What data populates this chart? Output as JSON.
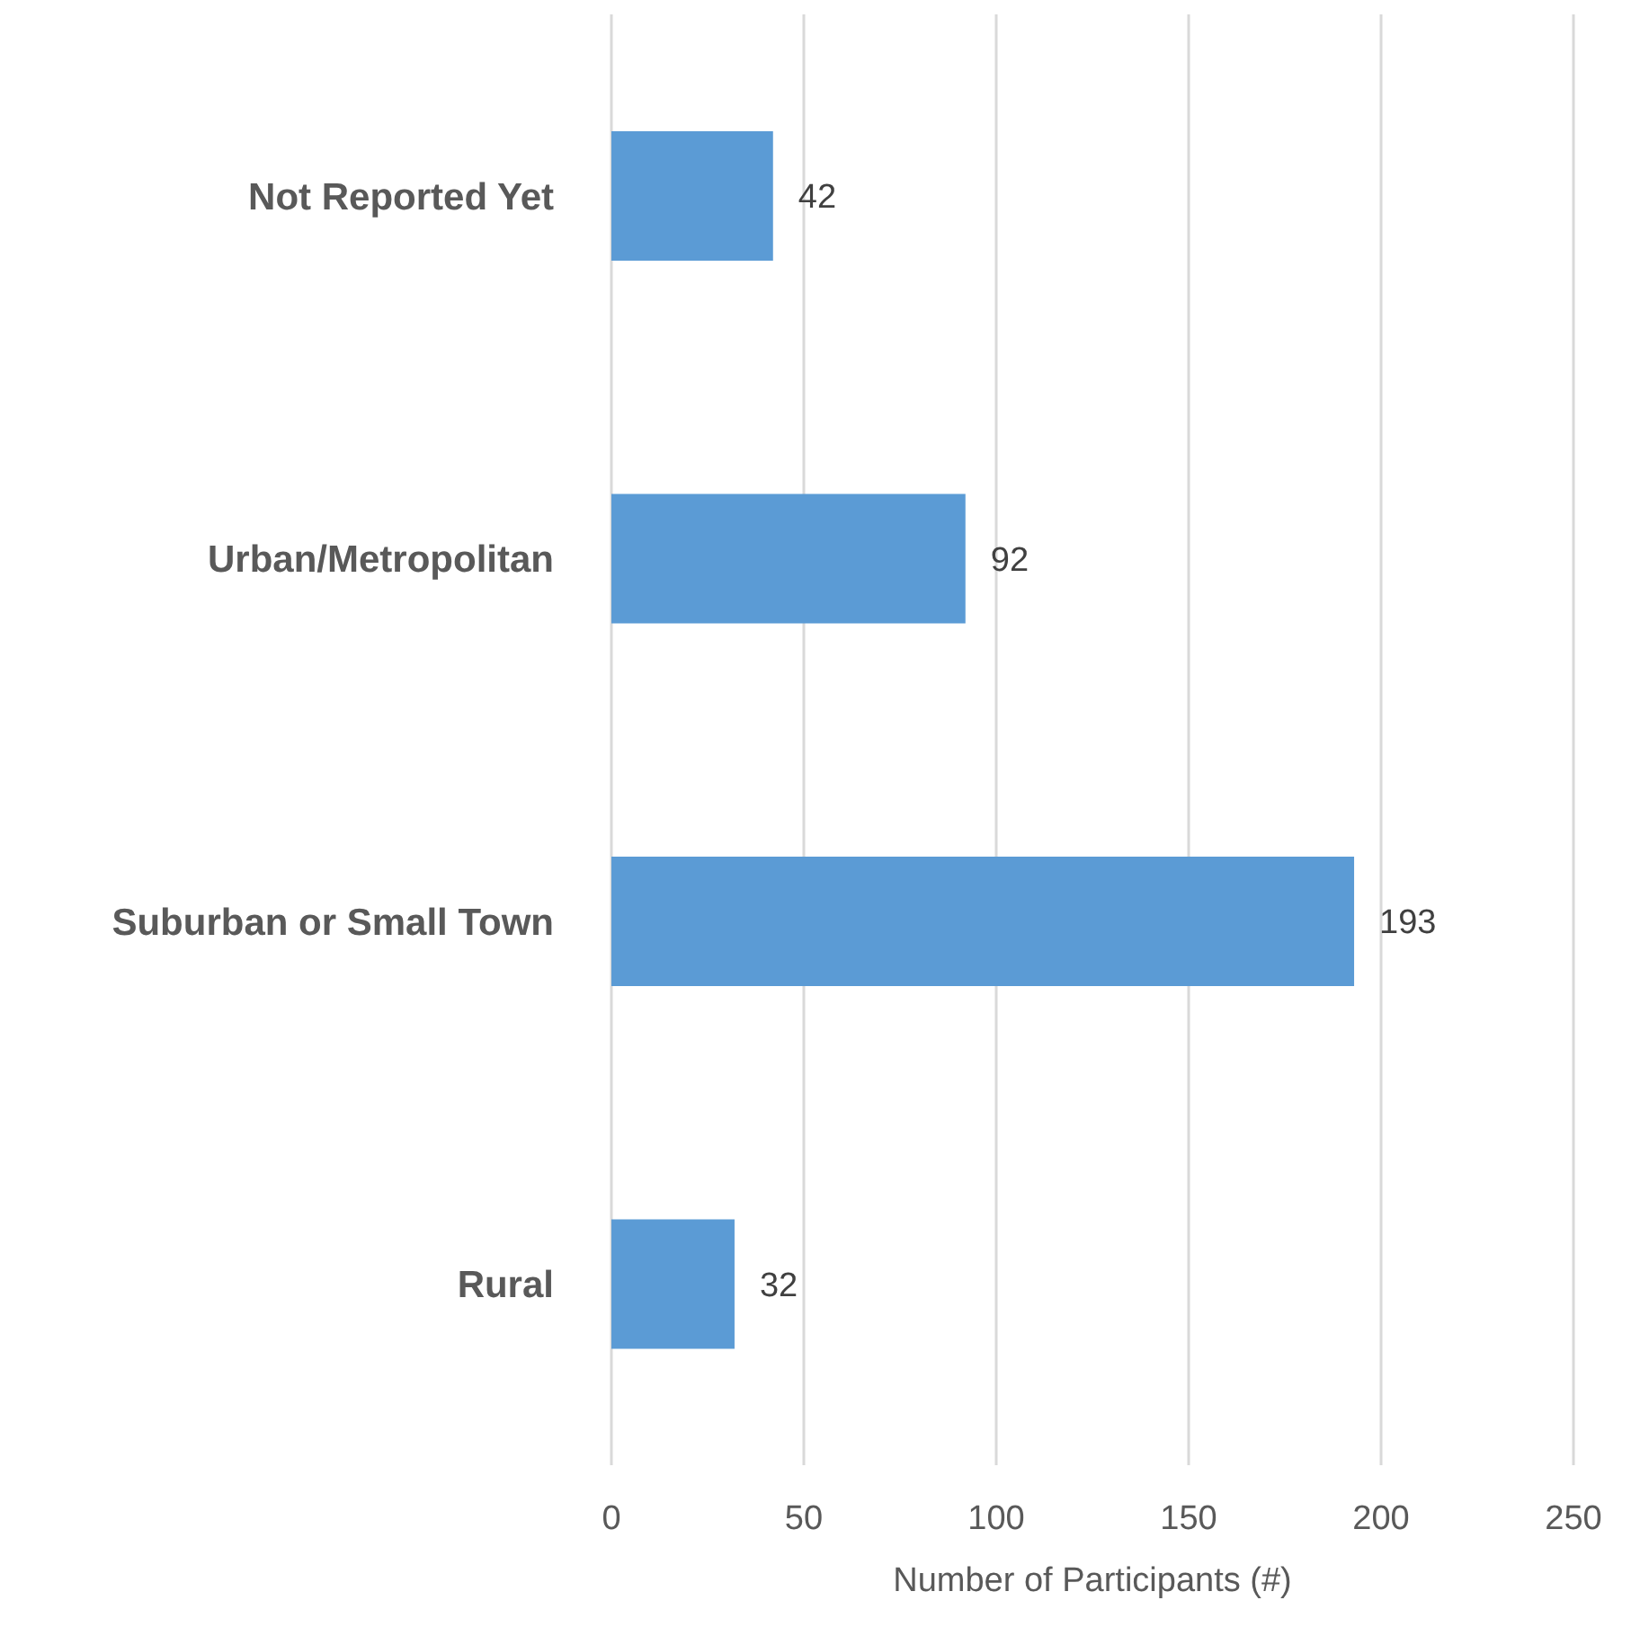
{
  "chart_data": {
    "type": "bar",
    "orientation": "horizontal",
    "xlabel": "Number of Participants (#)",
    "categories": [
      "Not Reported Yet",
      "Urban/Metropolitan",
      "Suburban or Small Town",
      "Rural"
    ],
    "values": [
      42,
      92,
      193,
      32
    ],
    "color": "#5b9bd5",
    "xlim": [
      0,
      250
    ],
    "xticks": [
      0,
      50,
      100,
      150,
      200,
      250
    ],
    "grid": "x",
    "data_labels": true
  }
}
